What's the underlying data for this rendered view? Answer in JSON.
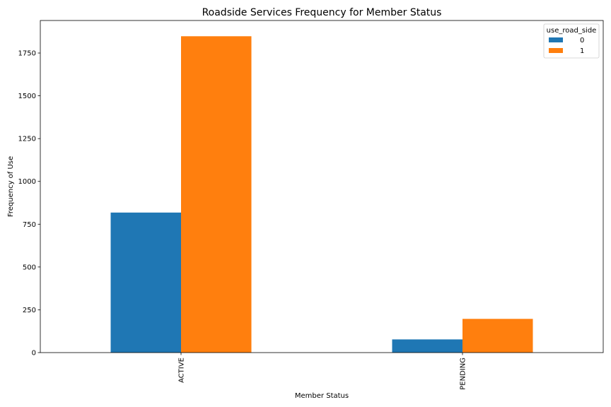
{
  "chart_data": {
    "type": "bar",
    "title": "Roadside Services Frequency for Member Status",
    "xlabel": "Member Status",
    "ylabel": "Frequency of Use",
    "categories": [
      "ACTIVE",
      "PENDING"
    ],
    "series": [
      {
        "name": "0",
        "values": [
          818,
          77
        ],
        "color": "#1f77b4"
      },
      {
        "name": "1",
        "values": [
          1848,
          197
        ],
        "color": "#ff7f0e"
      }
    ],
    "ylim": [
      0,
      1940
    ],
    "yticks": [
      0,
      250,
      500,
      750,
      1000,
      1250,
      1500,
      1750
    ],
    "grid": false,
    "legend": {
      "title": "use_road_side",
      "placement": "top-right"
    }
  }
}
